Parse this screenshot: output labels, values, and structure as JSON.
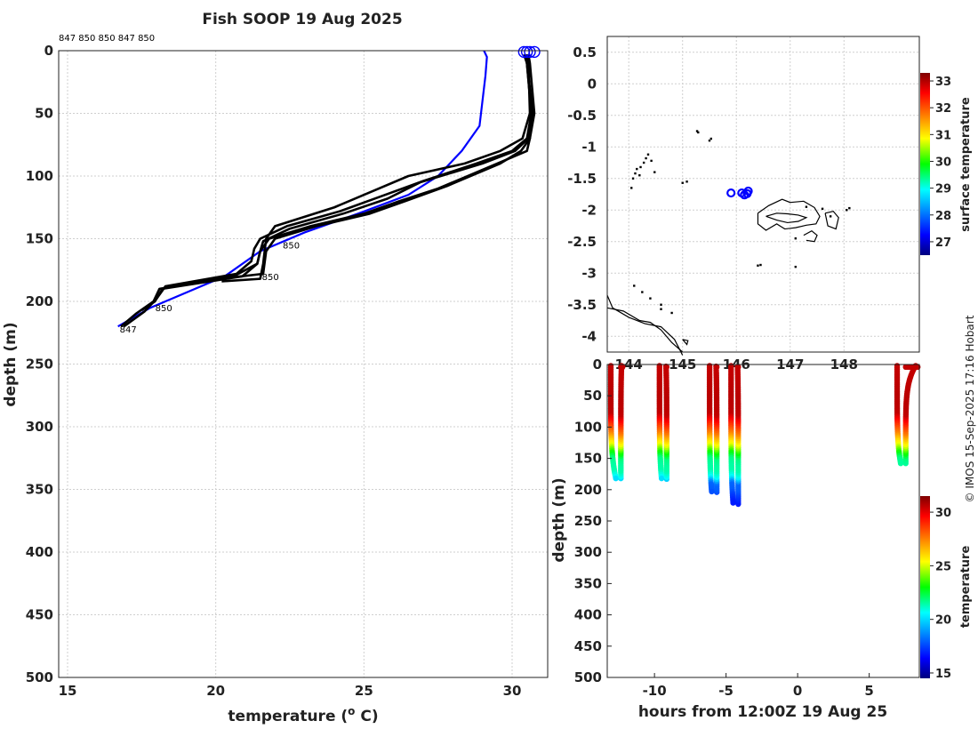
{
  "figure": {
    "title": "Fish SOOP 19 Aug 2025",
    "credit": "© IMOS 15-Sep-2025 17:16 Hobart",
    "profile_ids": "847 850 850 847 850"
  },
  "chart_data": [
    {
      "id": "profiles",
      "type": "line",
      "title": "Fish SOOP 19 Aug 2025",
      "xlabel": "temperature (",
      "xlabel_sup": "o",
      "xlabel_end": " C)",
      "ylabel": "depth (m)",
      "xlim": [
        14.7,
        31.2
      ],
      "ylim": [
        0,
        500
      ],
      "y_reversed": true,
      "xticks": [
        15,
        20,
        25,
        30
      ],
      "yticks": [
        0,
        50,
        100,
        150,
        200,
        250,
        300,
        350,
        400,
        450,
        500
      ],
      "grid": true,
      "colors": {
        "profile": "#000000",
        "climatology": "#0000ff"
      },
      "climatology": {
        "name": "climatology",
        "temperature": [
          29.05,
          29.15,
          29.1,
          29.0,
          28.9,
          28.3,
          27.5,
          26.5,
          24.8,
          23.0,
          21.5,
          20.3,
          17.8,
          16.7
        ],
        "depth": [
          0,
          5,
          20,
          40,
          60,
          80,
          100,
          115,
          130,
          145,
          160,
          180,
          205,
          220
        ]
      },
      "profiles": [
        {
          "id": "847",
          "temperature": [
            30.5,
            30.5,
            30.65,
            30.6,
            30.5,
            29.5,
            27.5,
            26.2,
            25.0,
            23.2,
            21.8,
            21.5,
            21.4,
            20.6,
            18.1,
            17.9,
            17.3,
            16.8
          ],
          "depth": [
            3,
            10,
            50,
            70,
            80,
            90,
            110,
            120,
            130,
            140,
            150,
            160,
            170,
            180,
            190,
            200,
            210,
            220
          ]
        },
        {
          "id": "850",
          "temperature": [
            30.45,
            30.5,
            30.7,
            30.55,
            30.1,
            29.0,
            26.9,
            25.8,
            24.3,
            22.5,
            21.6,
            21.5,
            21.4,
            20.9,
            18.2,
            17.95,
            17.5
          ],
          "depth": [
            3,
            10,
            50,
            70,
            80,
            90,
            105,
            118,
            130,
            142,
            152,
            160,
            170,
            180,
            190,
            200,
            207
          ]
        },
        {
          "id": "850",
          "temperature": [
            30.5,
            30.55,
            30.6,
            30.35,
            29.6,
            28.4,
            26.5,
            25.3,
            24.0,
            22.0,
            21.7,
            21.6,
            21.5,
            20.2
          ],
          "depth": [
            3,
            10,
            50,
            70,
            80,
            90,
            100,
            112,
            125,
            140,
            150,
            170,
            182,
            184
          ]
        },
        {
          "id": "847",
          "temperature": [
            30.4,
            30.5,
            30.65,
            30.5,
            30.0,
            28.8,
            27.0,
            25.6,
            24.2,
            22.4,
            21.5,
            21.3,
            21.2,
            20.7,
            18.3,
            18.0,
            17.6,
            16.9
          ],
          "depth": [
            3,
            10,
            50,
            70,
            80,
            90,
            104,
            116,
            128,
            140,
            150,
            158,
            168,
            178,
            188,
            198,
            208,
            220
          ]
        },
        {
          "id": "850",
          "temperature": [
            30.55,
            30.6,
            30.75,
            30.6,
            30.3,
            29.6,
            27.8,
            26.4,
            25.2,
            23.4,
            22.0,
            21.7,
            21.6,
            20.5
          ],
          "depth": [
            3,
            10,
            50,
            70,
            80,
            90,
            108,
            120,
            130,
            140,
            150,
            160,
            178,
            181
          ]
        }
      ],
      "labels": [
        {
          "text": "847",
          "temperature": 16.7,
          "depth": 222
        },
        {
          "text": "850",
          "temperature": 17.9,
          "depth": 205
        },
        {
          "text": "850",
          "temperature": 21.5,
          "depth": 180
        },
        {
          "text": "850",
          "temperature": 22.2,
          "depth": 155
        }
      ],
      "start_markers": [
        {
          "temperature": 30.4,
          "depth": 1
        },
        {
          "temperature": 30.5,
          "depth": 1
        },
        {
          "temperature": 30.6,
          "depth": 1
        },
        {
          "temperature": 30.75,
          "depth": 1
        }
      ]
    },
    {
      "id": "map",
      "type": "scatter",
      "title": "",
      "xlim": [
        143.6,
        149.4
      ],
      "ylim": [
        -4.25,
        0.75
      ],
      "xticks": [
        144,
        145,
        146,
        147,
        148
      ],
      "xtick_labels": [
        "144",
        "145",
        "146",
        "147",
        "148"
      ],
      "yticks": [
        0.5,
        0,
        -0.5,
        -1,
        -1.5,
        -2,
        -2.5,
        -3,
        -3.5,
        -4
      ],
      "ytick_labels": [
        "0.5",
        "0",
        "-0.5",
        "-1",
        "-1.5",
        "-2",
        "-2.5",
        "-3",
        "-3.5",
        "-4"
      ],
      "grid": true,
      "colorbar_label": "surface temperature",
      "colorbar_range": [
        26.5,
        33.3
      ],
      "colorbar_ticks": [
        27,
        28,
        29,
        30,
        31,
        32,
        33
      ],
      "stations": [
        {
          "lon": 145.9,
          "lat": -1.73,
          "color": "#0000ff"
        },
        {
          "lon": 146.1,
          "lat": -1.73,
          "color": "#0000ff"
        },
        {
          "lon": 146.15,
          "lat": -1.76,
          "color": "#0000ff"
        },
        {
          "lon": 146.2,
          "lat": -1.74,
          "color": "#0000ff"
        },
        {
          "lon": 146.22,
          "lat": -1.7,
          "color": "#0000ff"
        }
      ],
      "coastline": [
        {
          "lon": [
            143.6,
            143.7,
            144.0,
            144.3,
            144.6,
            144.85,
            145.0
          ],
          "lat": [
            -3.35,
            -3.55,
            -3.7,
            -3.8,
            -3.85,
            -4.05,
            -4.3
          ]
        },
        {
          "lon": [
            143.6,
            143.9,
            144.2,
            144.4,
            144.6,
            144.8,
            145.0
          ],
          "lat": [
            -3.55,
            -3.6,
            -3.75,
            -3.78,
            -3.9,
            -4.1,
            -4.25
          ]
        },
        {
          "lon": [
            146.4,
            146.6,
            146.85,
            147.0,
            147.25,
            147.45,
            147.55,
            147.48,
            147.3,
            147.1,
            146.9,
            146.75,
            146.55,
            146.4,
            146.4
          ],
          "lat": [
            -2.05,
            -1.93,
            -1.83,
            -1.88,
            -1.86,
            -1.96,
            -2.1,
            -2.22,
            -2.24,
            -2.28,
            -2.3,
            -2.22,
            -2.32,
            -2.22,
            -2.05
          ]
        },
        {
          "lon": [
            146.55,
            146.75,
            146.95,
            147.15,
            147.3,
            147.15,
            146.95,
            146.75,
            146.55
          ],
          "lat": [
            -2.1,
            -2.05,
            -2.06,
            -2.08,
            -2.12,
            -2.18,
            -2.2,
            -2.16,
            -2.1
          ]
        },
        {
          "lon": [
            147.25,
            147.4,
            147.5,
            147.45,
            147.3
          ],
          "lat": [
            -2.4,
            -2.33,
            -2.4,
            -2.5,
            -2.48
          ]
        },
        {
          "lon": [
            147.65,
            147.8,
            147.9,
            147.85,
            147.7,
            147.65
          ],
          "lat": [
            -2.05,
            -2.02,
            -2.12,
            -2.3,
            -2.25,
            -2.05
          ]
        },
        {
          "lon": [
            145.0,
            145.1,
            145.08,
            145.0
          ],
          "lat": [
            -4.05,
            -4.07,
            -4.13,
            -4.05
          ]
        }
      ],
      "islets": [
        {
          "lon": 144.05,
          "lat": -1.65
        },
        {
          "lon": 144.08,
          "lat": -1.5
        },
        {
          "lon": 144.12,
          "lat": -1.42
        },
        {
          "lon": 144.15,
          "lat": -1.35
        },
        {
          "lon": 144.22,
          "lat": -1.32
        },
        {
          "lon": 144.28,
          "lat": -1.25
        },
        {
          "lon": 144.32,
          "lat": -1.18
        },
        {
          "lon": 144.36,
          "lat": -1.12
        },
        {
          "lon": 144.42,
          "lat": -1.22
        },
        {
          "lon": 144.48,
          "lat": -1.4
        },
        {
          "lon": 144.2,
          "lat": -1.45
        },
        {
          "lon": 145.0,
          "lat": -1.57
        },
        {
          "lon": 145.08,
          "lat": -1.55
        },
        {
          "lon": 145.27,
          "lat": -0.75
        },
        {
          "lon": 145.29,
          "lat": -0.77
        },
        {
          "lon": 145.5,
          "lat": -0.9
        },
        {
          "lon": 145.53,
          "lat": -0.87
        },
        {
          "lon": 144.1,
          "lat": -3.2
        },
        {
          "lon": 144.25,
          "lat": -3.3
        },
        {
          "lon": 144.4,
          "lat": -3.4
        },
        {
          "lon": 144.6,
          "lat": -3.5
        },
        {
          "lon": 144.6,
          "lat": -3.57
        },
        {
          "lon": 144.8,
          "lat": -3.63
        },
        {
          "lon": 146.4,
          "lat": -2.88
        },
        {
          "lon": 146.45,
          "lat": -2.87
        },
        {
          "lon": 147.1,
          "lat": -2.9
        },
        {
          "lon": 147.1,
          "lat": -2.45
        },
        {
          "lon": 147.3,
          "lat": -1.95
        },
        {
          "lon": 147.6,
          "lat": -1.98
        },
        {
          "lon": 147.75,
          "lat": -2.1
        },
        {
          "lon": 148.05,
          "lat": -2.0
        },
        {
          "lon": 148.1,
          "lat": -1.97
        }
      ]
    },
    {
      "id": "section",
      "type": "scatter",
      "xlabel": "hours from 12:00Z 19 Aug 25",
      "ylabel": "depth (m)",
      "xlim": [
        -13.3,
        8.5
      ],
      "ylim": [
        0,
        500
      ],
      "y_reversed": true,
      "xticks": [
        -10,
        -5,
        0,
        5
      ],
      "yticks": [
        0,
        50,
        100,
        150,
        200,
        250,
        300,
        350,
        400,
        450,
        500
      ],
      "colorbar_label": "temperature",
      "colorbar_range": [
        14.5,
        31.5
      ],
      "colorbar_ticks": [
        15,
        20,
        25,
        30
      ],
      "casts": [
        {
          "t_start": -13.2,
          "t_end": -12.2,
          "max_depth": 182,
          "t_bottom": -12.7
        },
        {
          "t_start": -9.8,
          "t_end": -9.1,
          "max_depth": 183,
          "t_bottom": -9.5
        },
        {
          "t_start": -6.3,
          "t_end": -5.6,
          "max_depth": 204,
          "t_bottom": -6.0
        },
        {
          "t_start": -4.8,
          "t_end": -4.1,
          "max_depth": 223,
          "t_bottom": -4.5
        },
        {
          "t_start": 6.8,
          "t_end": 8.4,
          "max_depth": 158,
          "t_bottom": 7.2
        }
      ]
    }
  ]
}
